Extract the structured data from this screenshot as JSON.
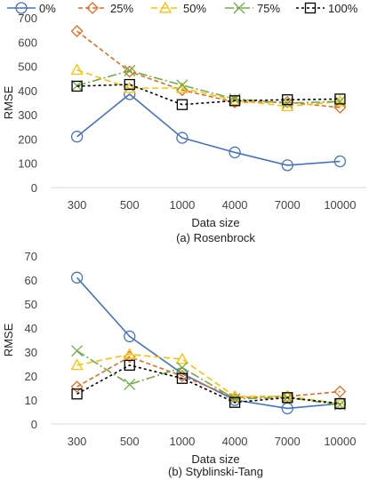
{
  "legend": [
    "0%",
    "25%",
    "50%",
    "75%",
    "100%"
  ],
  "series_style": [
    {
      "color": "#4472C4",
      "dash": "",
      "marker": "circle"
    },
    {
      "color": "#E36C1F",
      "dash": "5,3",
      "marker": "diamond"
    },
    {
      "color": "#FFC000",
      "dash": "7,4",
      "marker": "triangle"
    },
    {
      "color": "#70AD47",
      "dash": "10,3,2,3",
      "marker": "x"
    },
    {
      "color": "#000000",
      "dash": "3,3",
      "marker": "square"
    }
  ],
  "chart_data": [
    {
      "type": "line",
      "caption": "(a) Rosenbrock",
      "xlabel": "Data size",
      "ylabel": "RMSE",
      "categories": [
        "300",
        "500",
        "1000",
        "4000",
        "7000",
        "10000"
      ],
      "ylim": [
        0,
        700
      ],
      "yticks": [
        0,
        100,
        200,
        300,
        400,
        500,
        600,
        700
      ],
      "grid": false,
      "legend_position": "top",
      "series": [
        {
          "name": "0%",
          "values": [
            210,
            385,
            205,
            145,
            92,
            108
          ]
        },
        {
          "name": "25%",
          "values": [
            645,
            478,
            402,
            352,
            352,
            330
          ]
        },
        {
          "name": "50%",
          "values": [
            485,
            410,
            410,
            360,
            335,
            355
          ]
        },
        {
          "name": "75%",
          "values": [
            420,
            482,
            422,
            365,
            348,
            355
          ]
        },
        {
          "name": "100%",
          "values": [
            418,
            425,
            342,
            358,
            362,
            365
          ]
        }
      ]
    },
    {
      "type": "line",
      "caption": "(b) Styblinski-Tang",
      "xlabel": "Data size",
      "ylabel": "RMSE",
      "categories": [
        "300",
        "500",
        "1000",
        "4000",
        "7000",
        "10000"
      ],
      "ylim": [
        0,
        70
      ],
      "yticks": [
        0,
        10,
        20,
        30,
        40,
        50,
        60,
        70
      ],
      "grid": false,
      "series": [
        {
          "name": "0%",
          "values": [
            61,
            36.5,
            21,
            10,
            6.5,
            8.5
          ]
        },
        {
          "name": "25%",
          "values": [
            15.5,
            28,
            20,
            11,
            11.5,
            13.5
          ]
        },
        {
          "name": "50%",
          "values": [
            24.5,
            29,
            27,
            11.5,
            11.5,
            8.5
          ]
        },
        {
          "name": "75%",
          "values": [
            30.5,
            16.5,
            23.5,
            10.5,
            11,
            8
          ]
        },
        {
          "name": "100%",
          "values": [
            12.5,
            24.5,
            19,
            9,
            11,
            8.5
          ]
        }
      ]
    }
  ]
}
